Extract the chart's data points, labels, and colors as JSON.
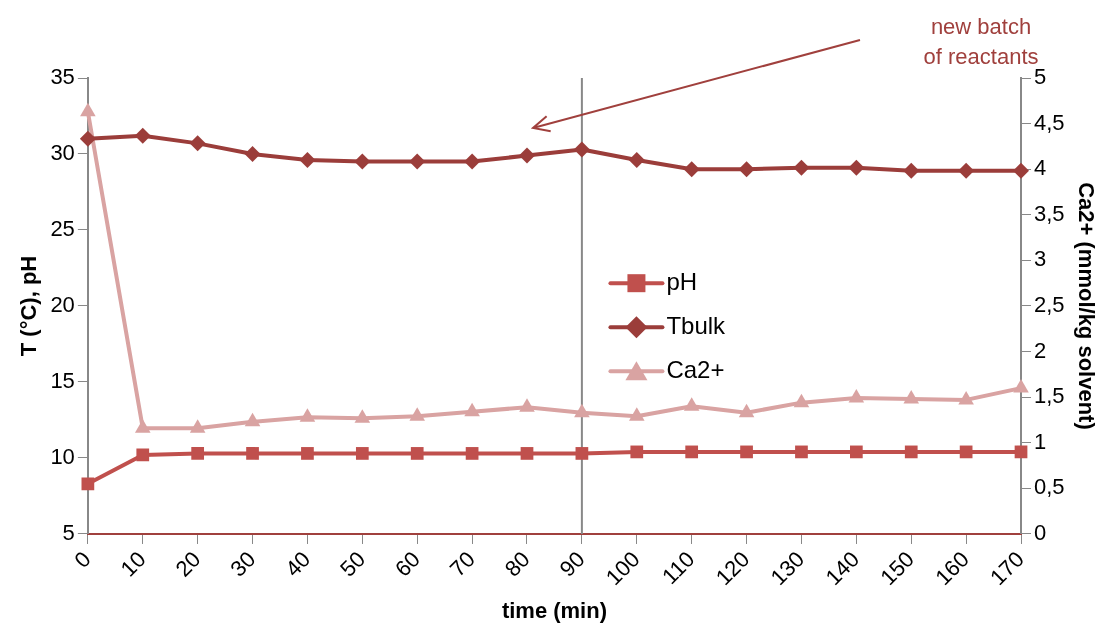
{
  "chart_data": {
    "type": "line",
    "xlabel": "time (min)",
    "ylabel": "T (°C), pH",
    "y2label": "Ca2+ (mmol/kg solvent)",
    "categories": [
      "0",
      "10",
      "20",
      "30",
      "40",
      "50",
      "60",
      "70",
      "80",
      "90",
      "100",
      "110",
      "120",
      "130",
      "140",
      "150",
      "160",
      "170"
    ],
    "series": [
      {
        "name": "pH",
        "color": "#c0504d",
        "marker": "square",
        "values": [
          8.3,
          10.2,
          10.3,
          10.3,
          10.3,
          10.3,
          10.3,
          10.3,
          10.3,
          10.3,
          10.4,
          10.4,
          10.4,
          10.4,
          10.4,
          10.4,
          10.4,
          10.4
        ]
      },
      {
        "name": "Tbulk",
        "color": "#9b3d3a",
        "marker": "diamond",
        "values": [
          31.0,
          31.2,
          30.7,
          30.0,
          29.6,
          29.5,
          29.5,
          29.5,
          29.9,
          30.3,
          29.6,
          29.0,
          29.0,
          29.1,
          29.1,
          28.9,
          28.9,
          28.9
        ]
      },
      {
        "name": "Ca2+",
        "color": "#d9a3a2",
        "marker": "triangle",
        "axis": "y2",
        "values": [
          4.63,
          1.16,
          1.16,
          1.23,
          1.28,
          1.27,
          1.29,
          1.34,
          1.39,
          1.33,
          1.29,
          1.4,
          1.33,
          1.44,
          1.49,
          1.48,
          1.47,
          1.6
        ]
      }
    ],
    "ylim": [
      5,
      35
    ],
    "yticks": [
      5,
      10,
      15,
      20,
      25,
      30,
      35
    ],
    "y2lim": [
      0,
      5
    ],
    "y2ticks": [
      {
        "value": 0,
        "label": "0"
      },
      {
        "value": 0.5,
        "label": "0,5"
      },
      {
        "value": 1,
        "label": "1"
      },
      {
        "value": 1.5,
        "label": "1,5"
      },
      {
        "value": 2,
        "label": "2"
      },
      {
        "value": 2.5,
        "label": "2,5"
      },
      {
        "value": 3,
        "label": "3"
      },
      {
        "value": 3.5,
        "label": "3,5"
      },
      {
        "value": 4,
        "label": "4"
      },
      {
        "value": 4.5,
        "label": "4,5"
      },
      {
        "value": 5,
        "label": "5"
      }
    ],
    "ref_lines": [
      {
        "axis": "x",
        "value": "90",
        "color": "#888888"
      }
    ],
    "annotations": [
      "new batch\nof reactants"
    ],
    "legend": "center"
  }
}
